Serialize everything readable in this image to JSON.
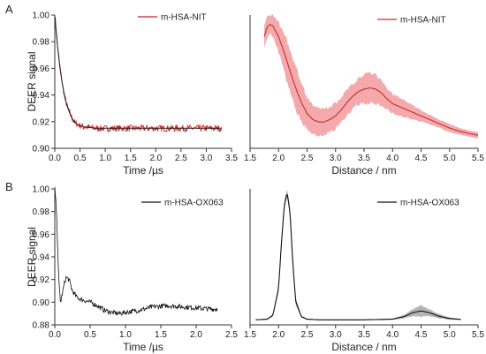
{
  "panel_labels": [
    "A",
    "B"
  ],
  "chart_data": [
    {
      "id": "A-time",
      "type": "line",
      "xlabel": "Time /µs",
      "ylabel": "DEER signal",
      "xlim": [
        0,
        3.5
      ],
      "ylim": [
        0.9,
        1.0
      ],
      "xticks": [
        "0.0",
        "0.5",
        "1.0",
        "1.5",
        "2.0",
        "2.5",
        "3.0",
        "3.5"
      ],
      "yticks": [
        "0.90",
        "0.92",
        "0.94",
        "0.96",
        "0.98",
        "1.00"
      ],
      "legend": "top-right",
      "series": [
        {
          "name": "m-HSA-NIT",
          "kind": "noisy-data",
          "color": "#d11a1a",
          "x": [
            0.0,
            0.02,
            0.05,
            0.08,
            0.12,
            0.16,
            0.2,
            0.25,
            0.3,
            0.35,
            0.4,
            0.5,
            0.6,
            0.8,
            1.0,
            1.5,
            2.0,
            2.5,
            3.0,
            3.3
          ],
          "y": [
            1.0,
            0.993,
            0.979,
            0.968,
            0.956,
            0.946,
            0.938,
            0.931,
            0.926,
            0.922,
            0.919,
            0.917,
            0.916,
            0.915,
            0.915,
            0.915,
            0.915,
            0.915,
            0.915,
            0.915
          ],
          "noise": 0.0025
        },
        {
          "name": "",
          "kind": "fit",
          "color": "#222222",
          "x": [
            0.0,
            0.05,
            0.1,
            0.15,
            0.2,
            0.25,
            0.3,
            0.35,
            0.4,
            0.5,
            0.6,
            0.8,
            1.0,
            2.0,
            3.0,
            3.3
          ],
          "y": [
            0.999,
            0.978,
            0.961,
            0.948,
            0.938,
            0.931,
            0.926,
            0.922,
            0.919,
            0.917,
            0.916,
            0.915,
            0.915,
            0.915,
            0.915,
            0.915
          ]
        }
      ]
    },
    {
      "id": "A-dist",
      "type": "line",
      "xlabel": "Distance / nm",
      "xlim": [
        1.5,
        5.5
      ],
      "xticks": [
        "1.5",
        "2.0",
        "2.5",
        "3.0",
        "3.5",
        "4.0",
        "4.5",
        "5.0",
        "5.5"
      ],
      "legend": "top-right",
      "series": [
        {
          "name": "m-HSA-NIT",
          "kind": "mean-with-band",
          "color": "#c0302c",
          "band_color": "#f4a9ad",
          "x": [
            1.75,
            1.8,
            1.85,
            1.9,
            2.0,
            2.1,
            2.2,
            2.3,
            2.4,
            2.5,
            2.6,
            2.7,
            2.8,
            2.9,
            3.0,
            3.1,
            3.2,
            3.3,
            3.4,
            3.5,
            3.6,
            3.7,
            3.8,
            3.9,
            4.0,
            4.2,
            4.4,
            4.6,
            4.8,
            5.0,
            5.2,
            5.5
          ],
          "y": [
            0.88,
            0.96,
            0.98,
            0.97,
            0.88,
            0.75,
            0.6,
            0.46,
            0.34,
            0.25,
            0.2,
            0.18,
            0.18,
            0.2,
            0.23,
            0.28,
            0.34,
            0.39,
            0.43,
            0.45,
            0.46,
            0.45,
            0.42,
            0.37,
            0.33,
            0.29,
            0.25,
            0.21,
            0.17,
            0.13,
            0.1,
            0.07
          ],
          "band": [
            0.1,
            0.1,
            0.08,
            0.1,
            0.14,
            0.18,
            0.2,
            0.2,
            0.18,
            0.15,
            0.13,
            0.12,
            0.12,
            0.12,
            0.12,
            0.12,
            0.12,
            0.12,
            0.12,
            0.13,
            0.14,
            0.13,
            0.12,
            0.1,
            0.09,
            0.08,
            0.06,
            0.05,
            0.04,
            0.04,
            0.03,
            0.03
          ]
        }
      ]
    },
    {
      "id": "B-time",
      "type": "line",
      "xlabel": "Time /µs",
      "ylabel": "DEER signal",
      "xlim": [
        0,
        2.5
      ],
      "ylim": [
        0.88,
        1.0
      ],
      "xticks": [
        "0.0",
        "0.5",
        "1.0",
        "1.5",
        "2.0",
        "2.5"
      ],
      "yticks": [
        "0.88",
        "0.90",
        "0.92",
        "0.94",
        "0.96",
        "0.98",
        "1.00"
      ],
      "legend": "top-right",
      "series": [
        {
          "name": "m-HSA-OX063",
          "kind": "noisy-data",
          "color": "#111111",
          "x": [
            0.0,
            0.02,
            0.04,
            0.06,
            0.08,
            0.1,
            0.13,
            0.16,
            0.2,
            0.25,
            0.3,
            0.35,
            0.4,
            0.5,
            0.6,
            0.7,
            0.8,
            0.9,
            1.0,
            1.2,
            1.4,
            1.6,
            1.8,
            2.0,
            2.2,
            2.3
          ],
          "y": [
            1.0,
            0.985,
            0.95,
            0.915,
            0.9,
            0.905,
            0.915,
            0.922,
            0.92,
            0.91,
            0.905,
            0.903,
            0.902,
            0.9,
            0.897,
            0.893,
            0.891,
            0.89,
            0.891,
            0.893,
            0.896,
            0.897,
            0.896,
            0.895,
            0.894,
            0.894
          ],
          "noise": 0.0022
        }
      ]
    },
    {
      "id": "B-dist",
      "type": "line",
      "xlabel": "Distance / nm",
      "xlim": [
        1.5,
        5.5
      ],
      "xticks": [
        "1.5",
        "2.0",
        "2.5",
        "3.0",
        "3.5",
        "4.0",
        "4.5",
        "5.0",
        "5.5"
      ],
      "legend": "top-right",
      "series": [
        {
          "name": "m-HSA-OX063",
          "kind": "mean-with-band",
          "color": "#111111",
          "band_color": "#b5b5b5",
          "x": [
            1.6,
            1.8,
            1.9,
            2.0,
            2.05,
            2.1,
            2.15,
            2.2,
            2.25,
            2.3,
            2.4,
            2.5,
            2.7,
            3.0,
            3.5,
            4.0,
            4.2,
            4.35,
            4.5,
            4.65,
            4.8,
            5.0,
            5.2
          ],
          "y": [
            0.005,
            0.01,
            0.04,
            0.25,
            0.6,
            0.9,
            1.0,
            0.85,
            0.45,
            0.15,
            0.03,
            0.01,
            0.005,
            0.005,
            0.005,
            0.01,
            0.03,
            0.06,
            0.075,
            0.06,
            0.035,
            0.015,
            0.008
          ],
          "band": [
            0.003,
            0.005,
            0.01,
            0.03,
            0.04,
            0.04,
            0.04,
            0.04,
            0.04,
            0.03,
            0.01,
            0.005,
            0.003,
            0.003,
            0.003,
            0.006,
            0.015,
            0.03,
            0.05,
            0.03,
            0.02,
            0.01,
            0.005
          ]
        }
      ]
    }
  ]
}
